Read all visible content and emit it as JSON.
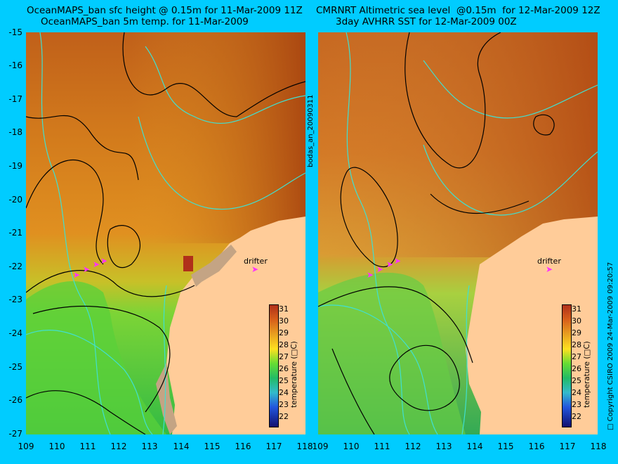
{
  "left_panel": {
    "title_line1": "OceanMAPS_ban sfc height @ 0.15m for 11-Mar-2009 11Z",
    "title_line2": "OceanMAPS_ban 5m temp. for 11-Mar-2009",
    "drifter_label": "drifter",
    "colorbar_ticks": [
      "31",
      "30",
      "29",
      "28",
      "27",
      "26",
      "25",
      "24",
      "23",
      "22"
    ],
    "colorbar_unit": "temperature (□C)"
  },
  "right_panel": {
    "title_line1": "CMRNRT Altimetric sea level  @0.15m  for 12-Mar-2009 12Z",
    "title_line2": "3day AVHRR SST for 12-Mar-2009 00Z",
    "drifter_label": "drifter",
    "colorbar_ticks": [
      "31",
      "30",
      "29",
      "28",
      "27",
      "26",
      "25",
      "24",
      "23",
      "22"
    ],
    "colorbar_unit": "temperature (□C)"
  },
  "latitude_ticks": [
    "-15",
    "-16",
    "-17",
    "-18",
    "-19",
    "-20",
    "-21",
    "-22",
    "-23",
    "-24",
    "-25",
    "-26",
    "-27"
  ],
  "longitude_ticks_left": [
    "109",
    "110",
    "111",
    "112",
    "113",
    "114",
    "115",
    "116",
    "117",
    "118"
  ],
  "longitude_ticks_right": [
    "109",
    "110",
    "111",
    "112",
    "113",
    "114",
    "115",
    "116",
    "117",
    "118"
  ],
  "middle_label": "bodas_an_20090311",
  "right_edge_label": "□ Copyright CSIRO 2009   24-Mar-2009 09:20:57",
  "colors": {
    "background": "#00ccff",
    "land": "#ffcc99",
    "coast_grid_cells": "#c4a484",
    "contour": "#000000",
    "isobath": "#40e0d0",
    "drifter_arrow": "#ff33ff",
    "sst_warm": "#b84a14",
    "sst_mid": "#e08a1a",
    "sst_cool": "#44cc33"
  }
}
